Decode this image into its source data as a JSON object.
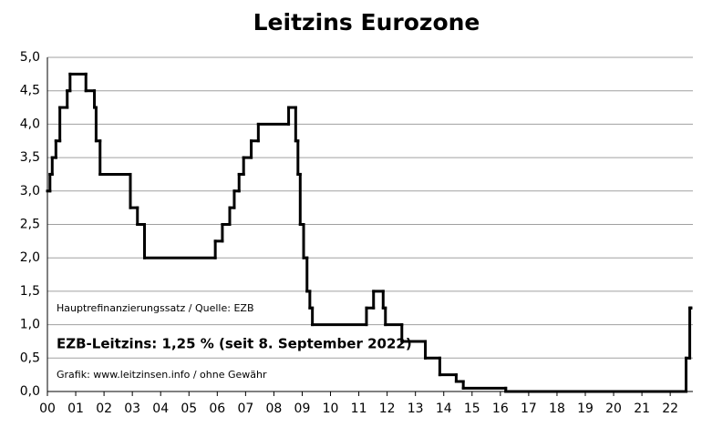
{
  "chart_data": {
    "type": "step",
    "title": "Leitzins Eurozone",
    "annotations": [
      "Hauptrefinanzierungssatz / Quelle: EZB",
      "EZB-Leitzins: 1,25 % (seit 8. September 2022)",
      "Grafik: www.leitzinsen.info / ohne Gewähr"
    ],
    "x": [
      0,
      0.09,
      0.17,
      0.3,
      0.44,
      0.7,
      0.8,
      1.36,
      1.66,
      1.72,
      1.86,
      2.93,
      3.18,
      3.43,
      5.93,
      6.18,
      6.44,
      6.6,
      6.77,
      6.93,
      7.2,
      7.45,
      8.52,
      8.77,
      8.85,
      8.93,
      9.05,
      9.17,
      9.27,
      9.36,
      11.27,
      11.52,
      11.86,
      11.94,
      12.52,
      13.35,
      13.86,
      14.44,
      14.69,
      16.19,
      22.56,
      22.69,
      22.73
    ],
    "values": [
      3.0,
      3.25,
      3.5,
      3.75,
      4.25,
      4.5,
      4.75,
      4.5,
      4.25,
      3.75,
      3.25,
      2.75,
      2.5,
      2.0,
      2.25,
      2.5,
      2.75,
      3.0,
      3.25,
      3.5,
      3.75,
      4.0,
      4.25,
      3.75,
      3.25,
      2.5,
      2.0,
      1.5,
      1.25,
      1.0,
      1.25,
      1.5,
      1.25,
      1.0,
      0.75,
      0.5,
      0.25,
      0.15,
      0.05,
      0.0,
      0.5,
      1.25,
      1.25
    ],
    "color": "#000000",
    "xlim": [
      0,
      22.8
    ],
    "xticks": [
      {
        "value": 0,
        "label": "00"
      },
      {
        "value": 1,
        "label": "01"
      },
      {
        "value": 2,
        "label": "02"
      },
      {
        "value": 3,
        "label": "03"
      },
      {
        "value": 4,
        "label": "04"
      },
      {
        "value": 5,
        "label": "05"
      },
      {
        "value": 6,
        "label": "06"
      },
      {
        "value": 7,
        "label": "07"
      },
      {
        "value": 8,
        "label": "08"
      },
      {
        "value": 9,
        "label": "09"
      },
      10,
      11,
      12,
      13,
      14,
      15,
      16,
      17,
      18,
      19,
      20,
      21,
      22
    ],
    "ylim": [
      0,
      5
    ],
    "yticks": [
      {
        "value": 0,
        "label": "0,0"
      },
      {
        "value": 0.5,
        "label": "0,5"
      },
      {
        "value": 1,
        "label": "1,0"
      },
      {
        "value": 1.5,
        "label": "1,5"
      },
      {
        "value": 2,
        "label": "2,0"
      },
      {
        "value": 2.5,
        "label": "2,5"
      },
      {
        "value": 3,
        "label": "3,0"
      },
      {
        "value": 3.5,
        "label": "3,5"
      },
      {
        "value": 4,
        "label": "4,0"
      },
      {
        "value": 4.5,
        "label": "4,5"
      },
      {
        "value": 5,
        "label": "5,0"
      }
    ],
    "grid": true
  }
}
